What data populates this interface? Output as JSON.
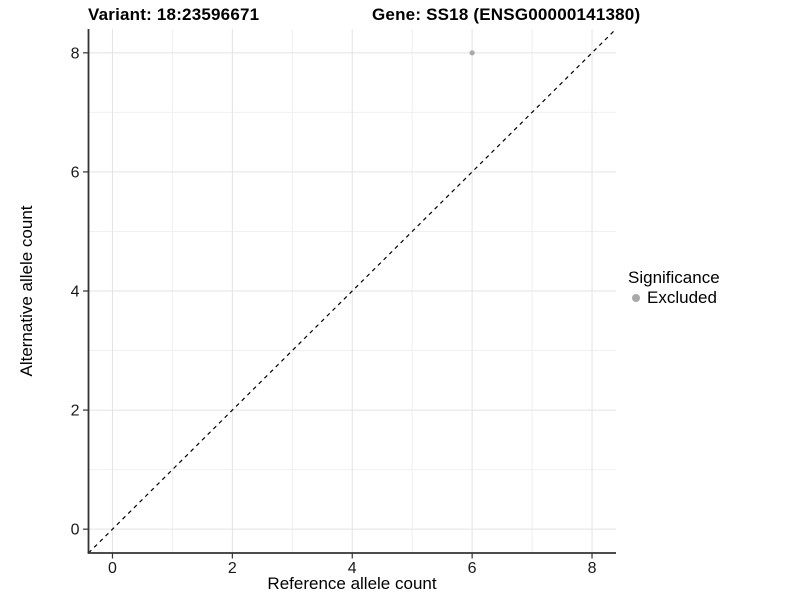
{
  "header": {
    "variant_title": "Variant: 18:23596671",
    "gene_title": "Gene: SS18 (ENSG00000141380)"
  },
  "chart_data": {
    "type": "scatter",
    "xlabel": "Reference allele count",
    "ylabel": "Alternative allele count",
    "x_ticks": [
      0,
      2,
      4,
      6,
      8
    ],
    "y_ticks": [
      0,
      2,
      4,
      6,
      8
    ],
    "minor_x": [
      1,
      3,
      5,
      7
    ],
    "minor_y": [
      1,
      3,
      5,
      7
    ],
    "xlim": [
      -0.4,
      8.4
    ],
    "ylim": [
      -0.4,
      8.4
    ],
    "grid": "major+minor",
    "points": [
      {
        "x": 6,
        "y": 8,
        "series": "Excluded"
      }
    ],
    "series": [
      {
        "name": "Excluded",
        "color": "#a9a9a9"
      }
    ],
    "reference_line": {
      "type": "identity",
      "style": "dashed",
      "from": [
        -0.4,
        -0.4
      ],
      "to": [
        8.4,
        8.4
      ],
      "color": "#000000"
    },
    "legend": {
      "title": "Significance",
      "position": "right",
      "entries": [
        {
          "label": "Excluded",
          "color": "#a9a9a9"
        }
      ]
    },
    "colors": {
      "background": "#ffffff",
      "axis_line": "#333333",
      "tick_mark": "#333333",
      "tick_label": "#1a1a1a",
      "grid_major": "#e3e3e3",
      "grid_minor": "#f0f0f0"
    }
  }
}
